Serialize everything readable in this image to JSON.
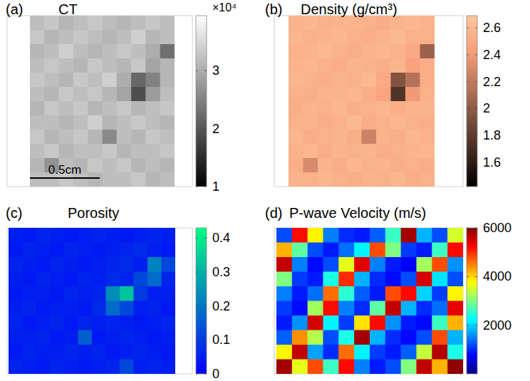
{
  "chart_data": [
    {
      "type": "heatmap",
      "panel": "(a)",
      "title": "CT",
      "color": "gray",
      "colorbar_range": [
        1,
        3.95
      ],
      "colorbar_ticks": [
        1,
        2,
        3
      ],
      "colorbar_label": "×10⁴",
      "scale_bar": "0.5cm",
      "cells": [
        [
          3.2,
          3.3,
          3.1,
          3.2,
          3.3,
          3.2,
          3.1,
          3.2,
          3.3,
          3.2
        ],
        [
          3.3,
          3.1,
          3.2,
          3.3,
          3.2,
          3.1,
          3.2,
          3.4,
          3.1,
          3.2
        ],
        [
          3.1,
          3.2,
          3.4,
          3.2,
          3.1,
          3.2,
          3.3,
          3.2,
          3.0,
          2.3
        ],
        [
          3.2,
          3.3,
          3.2,
          3.1,
          3.3,
          3.2,
          3.1,
          3.3,
          2.9,
          3.1
        ],
        [
          3.3,
          3.2,
          3.1,
          3.3,
          3.2,
          3.4,
          3.0,
          2.2,
          2.5,
          3.1
        ],
        [
          3.2,
          3.1,
          3.3,
          3.2,
          3.3,
          3.1,
          2.9,
          1.9,
          2.8,
          3.2
        ],
        [
          3.1,
          3.3,
          3.2,
          3.3,
          3.1,
          3.2,
          3.3,
          3.1,
          3.2,
          3.3
        ],
        [
          3.2,
          3.2,
          3.1,
          3.2,
          3.4,
          3.1,
          3.2,
          3.3,
          3.2,
          3.1
        ],
        [
          3.3,
          3.1,
          3.2,
          3.3,
          3.1,
          2.6,
          3.2,
          3.1,
          3.3,
          3.2
        ],
        [
          3.2,
          3.3,
          3.1,
          3.2,
          3.2,
          3.3,
          3.1,
          3.2,
          3.2,
          3.3
        ],
        [
          3.1,
          2.7,
          3.2,
          3.1,
          3.3,
          3.2,
          3.3,
          3.1,
          3.2,
          3.1
        ],
        [
          3.2,
          3.2,
          3.3,
          3.2,
          3.1,
          3.2,
          3.2,
          3.3,
          3.1,
          3.2
        ]
      ]
    },
    {
      "type": "heatmap",
      "panel": "(b)",
      "title": "Density (g/cm³)",
      "color": "copper",
      "colorbar_range": [
        1.42,
        2.69
      ],
      "colorbar_ticks": [
        1.6,
        1.8,
        2,
        2.2,
        2.4,
        2.6
      ],
      "cells": [
        [
          2.56,
          2.58,
          2.54,
          2.56,
          2.57,
          2.55,
          2.53,
          2.56,
          2.58,
          2.55
        ],
        [
          2.58,
          2.54,
          2.56,
          2.58,
          2.55,
          2.53,
          2.56,
          2.6,
          2.54,
          2.55
        ],
        [
          2.54,
          2.56,
          2.6,
          2.55,
          2.53,
          2.56,
          2.58,
          2.55,
          2.5,
          2.05
        ],
        [
          2.56,
          2.58,
          2.55,
          2.53,
          2.57,
          2.55,
          2.53,
          2.57,
          2.45,
          2.52
        ],
        [
          2.58,
          2.55,
          2.53,
          2.57,
          2.55,
          2.6,
          2.5,
          1.95,
          2.15,
          2.52
        ],
        [
          2.55,
          2.53,
          2.57,
          2.56,
          2.58,
          2.53,
          2.46,
          1.75,
          2.4,
          2.55
        ],
        [
          2.53,
          2.57,
          2.55,
          2.58,
          2.53,
          2.55,
          2.58,
          2.53,
          2.56,
          2.57
        ],
        [
          2.55,
          2.56,
          2.53,
          2.55,
          2.6,
          2.53,
          2.55,
          2.58,
          2.55,
          2.53
        ],
        [
          2.58,
          2.53,
          2.55,
          2.57,
          2.53,
          2.25,
          2.56,
          2.53,
          2.58,
          2.55
        ],
        [
          2.55,
          2.58,
          2.53,
          2.56,
          2.55,
          2.57,
          2.53,
          2.55,
          2.56,
          2.58
        ],
        [
          2.53,
          2.3,
          2.56,
          2.53,
          2.58,
          2.55,
          2.57,
          2.53,
          2.55,
          2.53
        ],
        [
          2.56,
          2.55,
          2.58,
          2.55,
          2.53,
          2.56,
          2.55,
          2.58,
          2.53,
          2.55
        ]
      ]
    },
    {
      "type": "heatmap",
      "panel": "(c)",
      "title": "Porosity",
      "color": "winter",
      "colorbar_range": [
        0,
        0.43
      ],
      "colorbar_ticks": [
        0,
        0.1,
        0.2,
        0.3,
        0.4
      ],
      "cells": [
        [
          0.05,
          0.04,
          0.06,
          0.05,
          0.04,
          0.05,
          0.06,
          0.05,
          0.04,
          0.05,
          0.06,
          0.05
        ],
        [
          0.04,
          0.06,
          0.05,
          0.04,
          0.06,
          0.05,
          0.04,
          0.05,
          0.06,
          0.07,
          0.05,
          0.04
        ],
        [
          0.06,
          0.05,
          0.04,
          0.06,
          0.05,
          0.04,
          0.05,
          0.06,
          0.07,
          0.05,
          0.22,
          0.12
        ],
        [
          0.05,
          0.04,
          0.06,
          0.05,
          0.04,
          0.06,
          0.05,
          0.07,
          0.06,
          0.12,
          0.18,
          0.06
        ],
        [
          0.04,
          0.05,
          0.05,
          0.04,
          0.06,
          0.05,
          0.06,
          0.24,
          0.33,
          0.1,
          0.05,
          0.05
        ],
        [
          0.05,
          0.06,
          0.04,
          0.05,
          0.05,
          0.04,
          0.07,
          0.18,
          0.12,
          0.05,
          0.06,
          0.04
        ],
        [
          0.06,
          0.04,
          0.05,
          0.06,
          0.04,
          0.06,
          0.05,
          0.06,
          0.05,
          0.04,
          0.05,
          0.06
        ],
        [
          0.05,
          0.05,
          0.06,
          0.04,
          0.05,
          0.16,
          0.04,
          0.05,
          0.06,
          0.05,
          0.04,
          0.05
        ],
        [
          0.04,
          0.06,
          0.05,
          0.05,
          0.06,
          0.05,
          0.06,
          0.04,
          0.05,
          0.06,
          0.05,
          0.04
        ],
        [
          0.06,
          0.05,
          0.04,
          0.06,
          0.05,
          0.04,
          0.05,
          0.06,
          0.12,
          0.05,
          0.06,
          0.05
        ]
      ]
    },
    {
      "type": "heatmap",
      "panel": "(d)",
      "title": "P-wave Velocity (m/s)",
      "color": "jet",
      "colorbar_range": [
        0,
        6000
      ],
      "colorbar_ticks": [
        2000,
        4000,
        6000
      ],
      "cells": [
        [
          1200,
          5200,
          3800,
          1500,
          1000,
          900,
          1300,
          2600,
          5800,
          1800,
          1200,
          3500
        ],
        [
          4200,
          2800,
          1200,
          900,
          1400,
          2200,
          4800,
          3000,
          1100,
          900,
          2600,
          5200
        ],
        [
          5600,
          1500,
          800,
          1200,
          3600,
          5400,
          1500,
          900,
          700,
          3200,
          4800,
          1600
        ],
        [
          3000,
          1100,
          900,
          2400,
          5000,
          1800,
          1000,
          800,
          1200,
          5500,
          2100,
          1200
        ],
        [
          1500,
          900,
          1400,
          4600,
          2500,
          1300,
          900,
          4800,
          5200,
          2000,
          1100,
          3800
        ],
        [
          1100,
          800,
          3200,
          5200,
          1500,
          1000,
          2800,
          5600,
          1800,
          1000,
          1400,
          5400
        ],
        [
          900,
          1600,
          5500,
          2200,
          1100,
          3900,
          5200,
          1600,
          900,
          800,
          2600,
          4200
        ],
        [
          1300,
          4400,
          3300,
          1200,
          2400,
          5800,
          1800,
          1000,
          800,
          1200,
          4800,
          1800
        ],
        [
          3800,
          5600,
          1700,
          1000,
          4600,
          2200,
          1100,
          900,
          1300,
          3400,
          5700,
          2400
        ],
        [
          5800,
          3600,
          4800,
          2600,
          5200,
          1500,
          900,
          1200,
          3000,
          5600,
          4200,
          5900
        ]
      ]
    }
  ]
}
